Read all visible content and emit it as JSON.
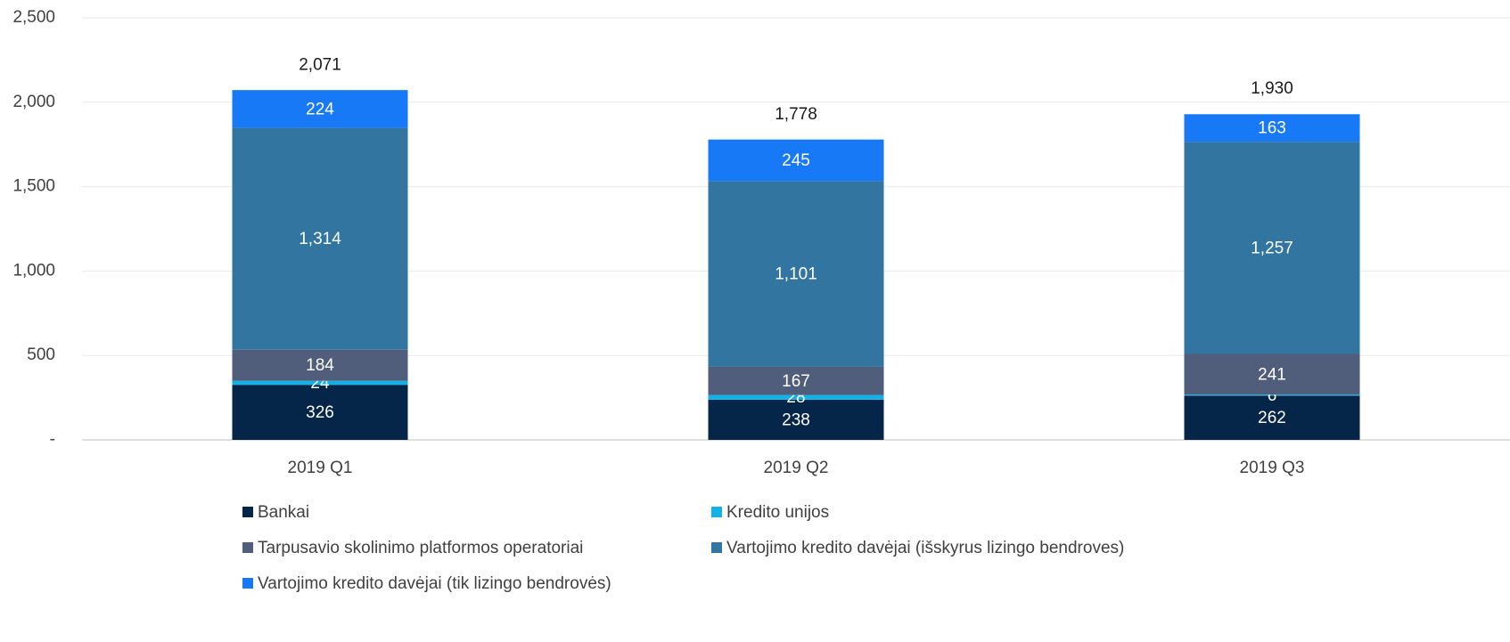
{
  "chart_data": {
    "type": "stacked_bar",
    "categories": [
      "2019 Q1",
      "2019 Q2",
      "2019 Q3"
    ],
    "series": [
      {
        "name": "Bankai",
        "color": "#052549",
        "values": [
          326,
          238,
          262
        ]
      },
      {
        "name": "Kredito unijos",
        "color": "#14b1e7",
        "values": [
          24,
          28,
          6
        ]
      },
      {
        "name": "Tarpusavio skolinimo platformos operatoriai",
        "color": "#505e7c",
        "values": [
          184,
          167,
          241
        ]
      },
      {
        "name": "Vartojimo kredito davėjai (išskyrus lizingo bendroves)",
        "color": "#3175a0",
        "values": [
          1314,
          1101,
          1257
        ],
        "value_labels": [
          "1,314",
          "1,101",
          "1,257"
        ]
      },
      {
        "name": "Vartojimo kredito davėjai (tik lizingo bendrovės)",
        "color": "#1779f5",
        "values": [
          224,
          245,
          163
        ]
      }
    ],
    "totals": {
      "values": [
        2071,
        1778,
        1930
      ],
      "value_labels": [
        "2,071",
        "1,778",
        "1,930"
      ]
    },
    "ylim": [
      0,
      2500
    ],
    "yticks": [
      {
        "value": 0,
        "label": "-"
      },
      500,
      {
        "value": 1000,
        "label": "1,000"
      },
      {
        "value": 1500,
        "label": "1,500"
      },
      {
        "value": 2000,
        "label": "2,000"
      },
      {
        "value": 2500,
        "label": "2,500"
      }
    ],
    "grid": true
  }
}
